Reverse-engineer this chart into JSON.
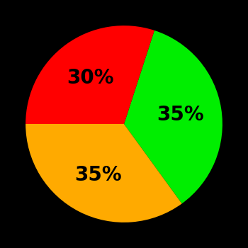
{
  "slices": [
    35,
    35,
    30
  ],
  "colors": [
    "#00ee00",
    "#ffaa00",
    "#ff0000"
  ],
  "labels": [
    "35%",
    "35%",
    "30%"
  ],
  "background_color": "#000000",
  "label_fontsize": 20,
  "label_fontweight": "bold",
  "startangle": 72,
  "figsize": [
    3.5,
    3.5
  ],
  "dpi": 100
}
